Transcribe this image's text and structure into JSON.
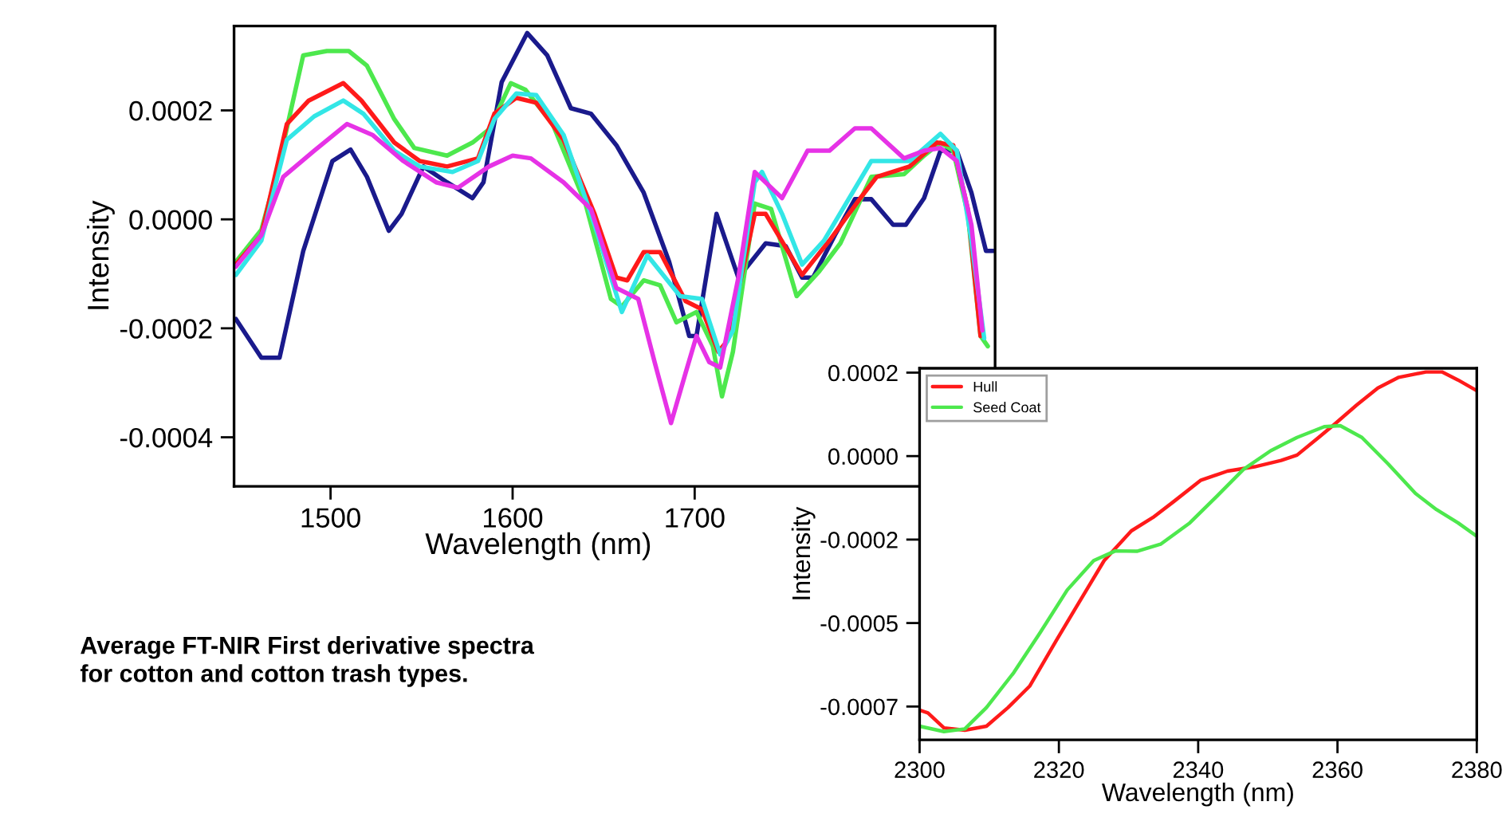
{
  "chart_data": [
    {
      "type": "line",
      "xlabel": "Wavelength (nm)",
      "ylabel": "Intensity",
      "xlim": [
        1447,
        1865
      ],
      "ylim": [
        -0.00049,
        0.000355
      ],
      "xticks": [
        1500,
        1600,
        1700
      ],
      "yticks": [
        0.0002,
        {
          "value": 0,
          "label": "0.0000"
        },
        -0.0002,
        -0.0004
      ],
      "grid": false,
      "legend": false,
      "annotations": [
        "Average FT-NIR First derivative spectra\nfor cotton and cotton trash types."
      ],
      "series": [
        {
          "color": "#1a1a8c",
          "x": [
            1448,
            1462,
            1472,
            1485,
            1501,
            1511,
            1520,
            1532,
            1539,
            1551,
            1564,
            1578,
            1584,
            1594,
            1608,
            1619,
            1632,
            1643,
            1657,
            1672,
            1686,
            1697,
            1701,
            1712,
            1724,
            1739,
            1750,
            1759,
            1765,
            1777,
            1788,
            1797,
            1809,
            1816,
            1826,
            1835,
            1844,
            1852,
            1860,
            1864
          ],
          "values": [
            -0.000183,
            -0.000254,
            -0.000254,
            -5.8e-05,
            0.000107,
            0.000128,
            7.8e-05,
            -2.1e-05,
            1e-05,
            9.7e-05,
            6.8e-05,
            3.9e-05,
            6.8e-05,
            0.000252,
            0.000342,
            0.000301,
            0.000204,
            0.000194,
            0.000136,
            4.9e-05,
            -7.8e-05,
            -0.000214,
            -0.000214,
            1e-05,
            -0.000107,
            -4.4e-05,
            -4.9e-05,
            -0.000107,
            -0.000107,
            -2.9e-05,
            3.7e-05,
            3.7e-05,
            -1e-05,
            -1e-05,
            3.9e-05,
            0.000126,
            0.000126,
            4.9e-05,
            -5.8e-05,
            -5.8e-05
          ]
        },
        {
          "color": "#4de84d",
          "x": [
            1448,
            1462,
            1470,
            1485,
            1498,
            1510,
            1520,
            1535,
            1546,
            1564,
            1578,
            1587,
            1599,
            1607,
            1622,
            1640,
            1654,
            1660,
            1672,
            1681,
            1690,
            1701,
            1710,
            1715,
            1721,
            1733,
            1742,
            1756,
            1768,
            1780,
            1797,
            1815,
            1826,
            1835,
            1842,
            1850,
            1857,
            1861
          ],
          "values": [
            -7.8e-05,
            -1.9e-05,
            7.8e-05,
            0.000301,
            0.000309,
            0.000309,
            0.000282,
            0.000184,
            0.000131,
            0.000117,
            0.000141,
            0.000165,
            0.00025,
            0.000238,
            0.000175,
            2.9e-05,
            -0.000146,
            -0.00016,
            -0.000112,
            -0.000121,
            -0.000189,
            -0.00017,
            -0.000233,
            -0.000325,
            -0.000243,
            2.9e-05,
            1.9e-05,
            -0.000141,
            -9.7e-05,
            -4.4e-05,
            7.8e-05,
            8.3e-05,
            0.000117,
            0.000141,
            0.000126,
            1e-05,
            -0.000214,
            -0.000233
          ]
        },
        {
          "color": "#ff1a1a",
          "x": [
            1448,
            1462,
            1476,
            1488,
            1507,
            1517,
            1535,
            1549,
            1564,
            1581,
            1590,
            1602,
            1613,
            1628,
            1645,
            1657,
            1663,
            1672,
            1681,
            1695,
            1704,
            1713,
            1718,
            1733,
            1739,
            1759,
            1774,
            1791,
            1800,
            1818,
            1833,
            1842,
            1850,
            1857
          ],
          "values": [
            -8.3e-05,
            -2.9e-05,
            0.000175,
            0.000218,
            0.00025,
            0.000218,
            0.000141,
            0.000107,
            9.7e-05,
            0.000112,
            0.000194,
            0.000223,
            0.000214,
            0.000146,
            1e-05,
            -0.000107,
            -0.000112,
            -6e-05,
            -6e-05,
            -0.00015,
            -0.000165,
            -0.000243,
            -0.000223,
            1e-05,
            1e-05,
            -0.000102,
            -3.9e-05,
            3.9e-05,
            7.8e-05,
            9.7e-05,
            0.000141,
            0.000136,
            1.9e-05,
            -0.000214
          ]
        },
        {
          "color": "#33e6e6",
          "x": [
            1448,
            1462,
            1476,
            1491,
            1507,
            1518,
            1535,
            1549,
            1567,
            1581,
            1590,
            1602,
            1613,
            1628,
            1645,
            1660,
            1674,
            1692,
            1704,
            1714,
            1721,
            1733,
            1737,
            1748,
            1759,
            1771,
            1797,
            1818,
            1835,
            1844,
            1852,
            1859
          ],
          "values": [
            -0.000102,
            -3.9e-05,
            0.000146,
            0.000189,
            0.000218,
            0.000194,
            0.000126,
            9.7e-05,
            8.7e-05,
            0.000107,
            0.000184,
            0.000231,
            0.000228,
            0.000155,
            -1e-05,
            -0.00017,
            -6.6e-05,
            -0.000141,
            -0.000146,
            -0.000248,
            -0.000204,
            6.8e-05,
            8.7e-05,
            1e-05,
            -8.3e-05,
            -3.9e-05,
            0.000107,
            0.000107,
            0.000157,
            0.000126,
            -3.9e-05,
            -0.000218
          ]
        },
        {
          "color": "#e632e6",
          "x": [
            1448,
            1462,
            1474,
            1491,
            1509,
            1523,
            1540,
            1558,
            1570,
            1587,
            1600,
            1610,
            1628,
            1643,
            1657,
            1669,
            1678,
            1687,
            1695,
            1701,
            1708,
            1714,
            1724,
            1733,
            1748,
            1762,
            1774,
            1788,
            1797,
            1815,
            1826,
            1835,
            1844,
            1852,
            1858
          ],
          "values": [
            -8.7e-05,
            -2.9e-05,
            7.8e-05,
            0.000126,
            0.000175,
            0.000155,
            0.000107,
            6.8e-05,
            5.8e-05,
            9.7e-05,
            0.000117,
            0.000112,
            6.8e-05,
            1.9e-05,
            -0.000126,
            -0.000146,
            -0.000262,
            -0.000374,
            -0.000282,
            -0.000214,
            -0.000262,
            -0.000272,
            -0.000107,
            8.7e-05,
            3.9e-05,
            0.000126,
            0.000126,
            0.000167,
            0.000167,
            0.000112,
            0.000126,
            0.000131,
            0.000107,
            -1e-05,
            -0.000204
          ]
        }
      ]
    },
    {
      "type": "line",
      "xlabel": "Wavelength (nm)",
      "ylabel": "Intensity",
      "xlim": [
        2300,
        2380
      ],
      "ylim": [
        -0.00085,
        0.000263
      ],
      "xticks": [
        2300,
        2320,
        2340,
        2360,
        2380
      ],
      "yticks": [
        {
          "value": 0.00025,
          "label": "0.0002"
        },
        {
          "value": 0,
          "label": "0.0000"
        },
        {
          "value": -0.00025,
          "label": "-0.0002"
        },
        {
          "value": -0.0005,
          "label": "-0.0005"
        },
        {
          "value": -0.00075,
          "label": "-0.0007"
        }
      ],
      "grid": false,
      "legend": "top left",
      "series": [
        {
          "name": "Hull",
          "color": "#ff1a1a",
          "x": [
            2300,
            2301.2,
            2303.5,
            2306.5,
            2309.6,
            2312.7,
            2315.8,
            2319.6,
            2323.5,
            2326.5,
            2330.4,
            2333.5,
            2336.5,
            2340.4,
            2344.2,
            2348.1,
            2351.9,
            2354.2,
            2357.3,
            2359.6,
            2362.7,
            2365.8,
            2368.8,
            2372.7,
            2375,
            2377.3,
            2380
          ],
          "values": [
            -0.000761,
            -0.000769,
            -0.000814,
            -0.000821,
            -0.000809,
            -0.000753,
            -0.000689,
            -0.000553,
            -0.000417,
            -0.000313,
            -0.000224,
            -0.000184,
            -0.000136,
            -7.2e-05,
            -4.5e-05,
            -3.2e-05,
            -1.3e-05,
            3e-06,
            5.6e-05,
            9.6e-05,
            0.000152,
            0.000204,
            0.000236,
            0.000252,
            0.000252,
            0.000228,
            0.000196
          ]
        },
        {
          "name": "Seed Coat",
          "color": "#4de84d",
          "x": [
            2300,
            2303.5,
            2306.5,
            2309.6,
            2313.5,
            2317.3,
            2321.2,
            2325,
            2328.1,
            2331.2,
            2334.6,
            2338.8,
            2342.7,
            2346.5,
            2350.4,
            2354.2,
            2358.1,
            2360.4,
            2363.5,
            2367.3,
            2371.2,
            2374.2,
            2377.3,
            2380
          ],
          "values": [
            -0.000809,
            -0.000825,
            -0.000817,
            -0.000753,
            -0.000649,
            -0.000529,
            -0.000401,
            -0.000313,
            -0.000284,
            -0.000285,
            -0.000264,
            -0.0002,
            -0.00012,
            -4e-05,
            1.6e-05,
            5.6e-05,
            8.8e-05,
            9.1e-05,
            5.6e-05,
            -2.4e-05,
            -0.000112,
            -0.00016,
            -0.0002,
            -0.00024
          ]
        }
      ]
    }
  ]
}
